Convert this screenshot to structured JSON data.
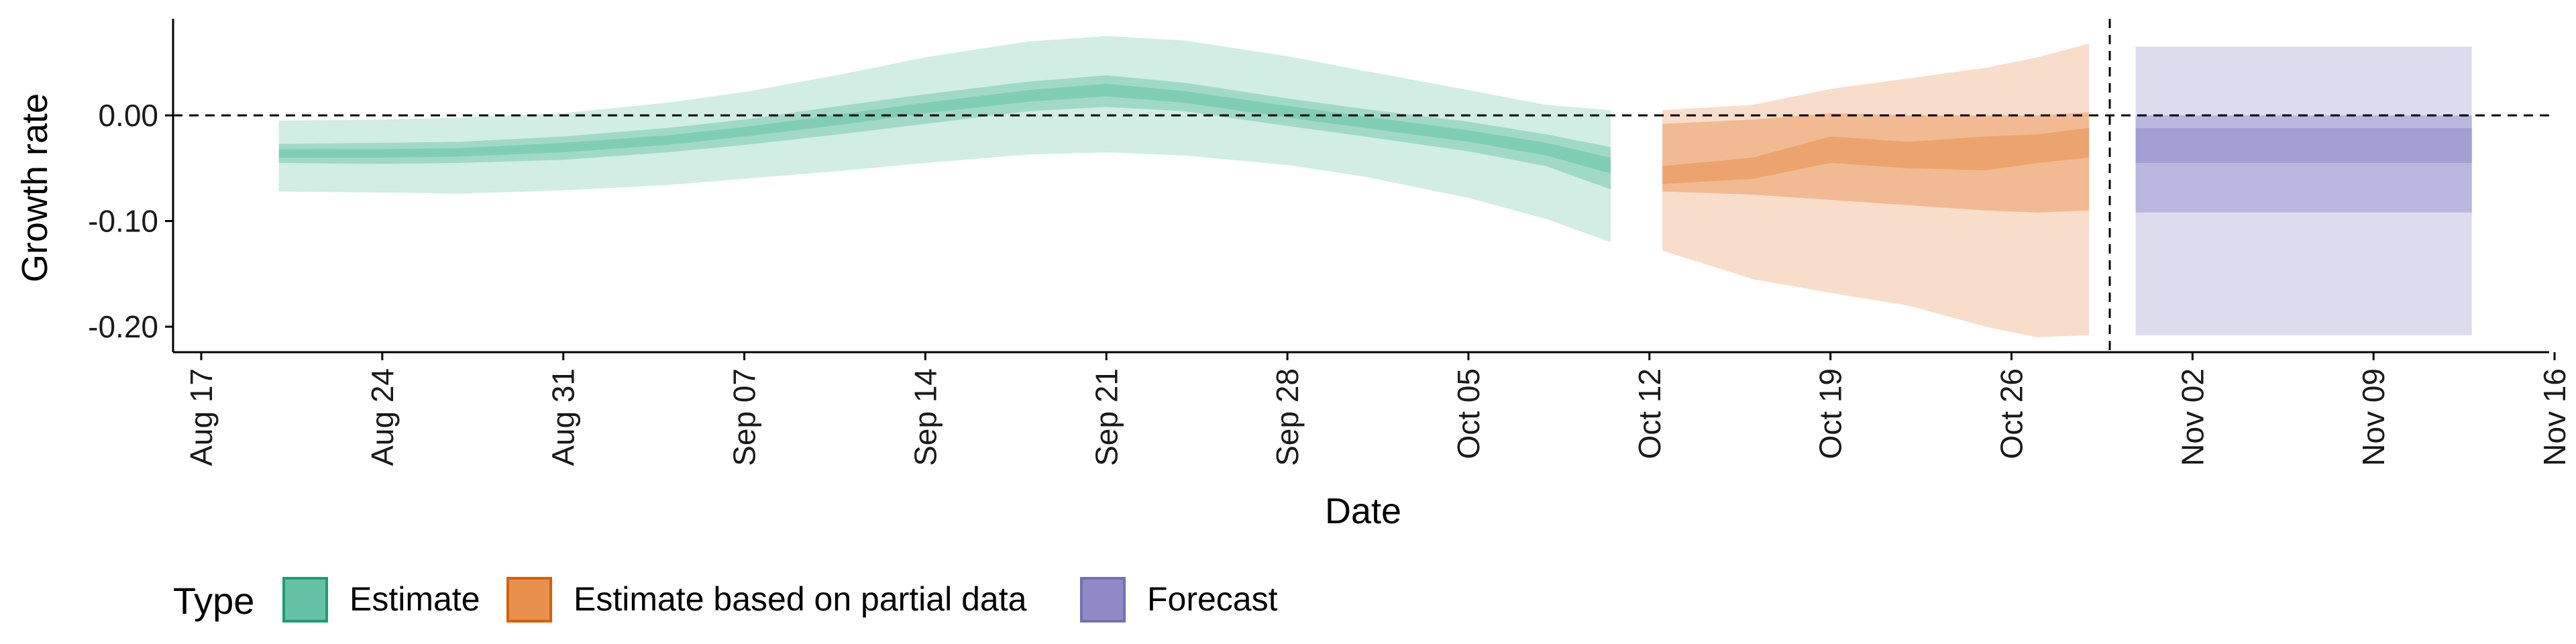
{
  "chart_data": {
    "type": "area",
    "xlabel": "Date",
    "ylabel": "Growth rate",
    "ylim": [
      -0.22,
      0.09
    ],
    "y_ticks": [
      0.0,
      -0.1,
      -0.2
    ],
    "y_tick_labels": [
      "0.00",
      "-0.10",
      "-0.20"
    ],
    "x_range_days": [
      -3,
      88
    ],
    "x_ticks": [
      {
        "label": "Aug 17",
        "day": 0
      },
      {
        "label": "Aug 24",
        "day": 7
      },
      {
        "label": "Aug 31",
        "day": 14
      },
      {
        "label": "Sep 07",
        "day": 21
      },
      {
        "label": "Sep 14",
        "day": 28
      },
      {
        "label": "Sep 21",
        "day": 35
      },
      {
        "label": "Sep 28",
        "day": 42
      },
      {
        "label": "Oct 05",
        "day": 49
      },
      {
        "label": "Oct 12",
        "day": 56
      },
      {
        "label": "Oct 19",
        "day": 63
      },
      {
        "label": "Oct 26",
        "day": 70
      },
      {
        "label": "Nov 02",
        "day": 77
      },
      {
        "label": "Nov 09",
        "day": 84
      },
      {
        "label": "Nov 16",
        "day": 91
      }
    ],
    "reference_lines": {
      "horizontal_y": 0.0,
      "vertical_day": 73.8
    },
    "legend": {
      "title": "Type",
      "position": "bottom",
      "entries": [
        {
          "label": "Estimate",
          "color": "#66c2a5",
          "border": "#1b9e77"
        },
        {
          "label": "Estimate based on partial data",
          "color": "#e8904e",
          "border": "#d95f02"
        },
        {
          "label": "Forecast",
          "color": "#8f8ac7",
          "border": "#7570b3"
        }
      ]
    },
    "series": [
      {
        "name": "Estimate",
        "color": "#66c2a5",
        "points": [
          {
            "day": 3,
            "lo90": -0.072,
            "lo50": -0.045,
            "lo20": -0.04,
            "hi20": -0.032,
            "hi50": -0.027,
            "hi90": -0.005
          },
          {
            "day": 7,
            "lo90": -0.073,
            "lo50": -0.046,
            "lo20": -0.04,
            "hi20": -0.032,
            "hi50": -0.026,
            "hi90": -0.004
          },
          {
            "day": 10,
            "lo90": -0.074,
            "lo50": -0.045,
            "lo20": -0.039,
            "hi20": -0.031,
            "hi50": -0.025,
            "hi90": -0.002
          },
          {
            "day": 14,
            "lo90": -0.071,
            "lo50": -0.042,
            "lo20": -0.035,
            "hi20": -0.026,
            "hi50": -0.02,
            "hi90": 0.002
          },
          {
            "day": 18,
            "lo90": -0.066,
            "lo50": -0.035,
            "lo20": -0.028,
            "hi20": -0.019,
            "hi50": -0.012,
            "hi90": 0.012
          },
          {
            "day": 21,
            "lo90": -0.06,
            "lo50": -0.028,
            "lo20": -0.02,
            "hi20": -0.011,
            "hi50": -0.004,
            "hi90": 0.022
          },
          {
            "day": 25,
            "lo90": -0.052,
            "lo50": -0.017,
            "lo20": -0.008,
            "hi20": 0.002,
            "hi50": 0.01,
            "hi90": 0.04
          },
          {
            "day": 28,
            "lo90": -0.045,
            "lo50": -0.008,
            "lo20": 0.002,
            "hi20": 0.012,
            "hi50": 0.02,
            "hi90": 0.055
          },
          {
            "day": 32,
            "lo90": -0.037,
            "lo50": 0.004,
            "lo20": 0.013,
            "hi20": 0.024,
            "hi50": 0.032,
            "hi90": 0.07
          },
          {
            "day": 35,
            "lo90": -0.035,
            "lo50": 0.008,
            "lo20": 0.018,
            "hi20": 0.03,
            "hi50": 0.038,
            "hi90": 0.075
          },
          {
            "day": 38,
            "lo90": -0.038,
            "lo50": 0.004,
            "lo20": 0.012,
            "hi20": 0.023,
            "hi50": 0.031,
            "hi90": 0.071
          },
          {
            "day": 42,
            "lo90": -0.047,
            "lo50": -0.01,
            "lo20": -0.002,
            "hi20": 0.009,
            "hi50": 0.016,
            "hi90": 0.056
          },
          {
            "day": 45,
            "lo90": -0.058,
            "lo50": -0.02,
            "lo20": -0.012,
            "hi20": -0.001,
            "hi50": 0.006,
            "hi90": 0.042
          },
          {
            "day": 49,
            "lo90": -0.078,
            "lo50": -0.034,
            "lo20": -0.025,
            "hi20": -0.014,
            "hi50": -0.006,
            "hi90": 0.024
          },
          {
            "day": 52,
            "lo90": -0.098,
            "lo50": -0.048,
            "lo20": -0.038,
            "hi20": -0.026,
            "hi50": -0.018,
            "hi90": 0.01
          },
          {
            "day": 54.5,
            "lo90": -0.12,
            "lo50": -0.07,
            "lo20": -0.055,
            "hi20": -0.04,
            "hi50": -0.03,
            "hi90": 0.005
          }
        ]
      },
      {
        "name": "Estimate based on partial data",
        "color": "#e8904e",
        "points": [
          {
            "day": 56.5,
            "lo90": -0.128,
            "lo50": -0.072,
            "lo20": -0.065,
            "hi20": -0.048,
            "hi50": -0.008,
            "hi90": 0.005
          },
          {
            "day": 60,
            "lo90": -0.155,
            "lo50": -0.075,
            "lo20": -0.06,
            "hi20": -0.04,
            "hi50": -0.004,
            "hi90": 0.01
          },
          {
            "day": 63,
            "lo90": -0.168,
            "lo50": -0.08,
            "lo20": -0.045,
            "hi20": -0.02,
            "hi50": 0.002,
            "hi90": 0.025
          },
          {
            "day": 66,
            "lo90": -0.18,
            "lo50": -0.085,
            "lo20": -0.05,
            "hi20": -0.025,
            "hi50": 0.0,
            "hi90": 0.035
          },
          {
            "day": 69,
            "lo90": -0.2,
            "lo50": -0.09,
            "lo20": -0.052,
            "hi20": -0.02,
            "hi50": 0.0,
            "hi90": 0.045
          },
          {
            "day": 71,
            "lo90": -0.21,
            "lo50": -0.092,
            "lo20": -0.045,
            "hi20": -0.018,
            "hi50": 0.0,
            "hi90": 0.055
          },
          {
            "day": 73,
            "lo90": -0.208,
            "lo50": -0.09,
            "lo20": -0.04,
            "hi20": -0.012,
            "hi50": 0.003,
            "hi90": 0.068
          }
        ]
      },
      {
        "name": "Forecast",
        "color": "#8f8ac7",
        "points": [
          {
            "day": 74.8,
            "lo90": -0.208,
            "lo50": -0.092,
            "lo20": -0.045,
            "hi20": -0.012,
            "hi50": 0.0,
            "hi90": 0.065
          },
          {
            "day": 87.8,
            "lo90": -0.208,
            "lo50": -0.092,
            "lo20": -0.045,
            "hi20": -0.012,
            "hi50": 0.0,
            "hi90": 0.065
          }
        ]
      }
    ]
  }
}
